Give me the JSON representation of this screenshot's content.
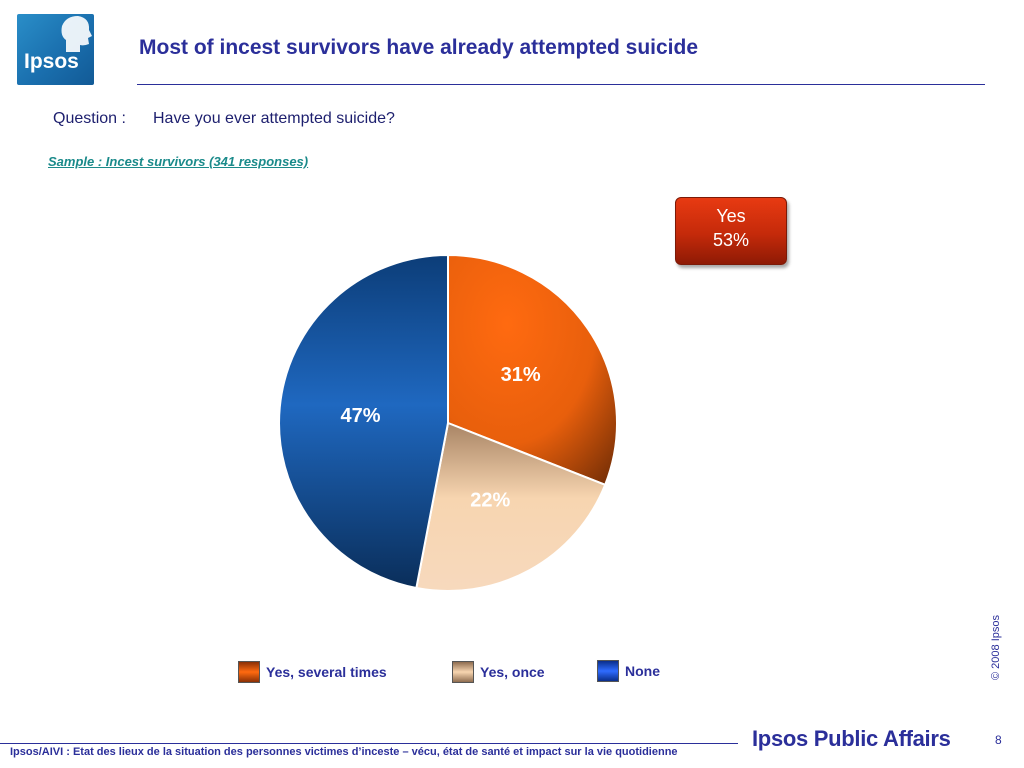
{
  "header": {
    "logo_text": "Ipsos",
    "title": "Most of incest survivors have already attempted suicide"
  },
  "question": {
    "label": "Question :",
    "text": "Have you ever attempted suicide?"
  },
  "sample": "Sample : Incest survivors (341 responses)",
  "callout": {
    "label": "Yes",
    "value": "53%"
  },
  "chart_data": {
    "type": "pie",
    "categories": [
      "Yes, several times",
      "Yes, once",
      "None"
    ],
    "values": [
      31,
      22,
      47
    ],
    "data_labels": [
      "31%",
      "22%",
      "47%"
    ],
    "colors": [
      "#e85f0c",
      "#f0c9a0",
      "#1f5ba6"
    ],
    "legend_position": "bottom"
  },
  "footer": {
    "copyright": "© 2008 Ipsos",
    "text": "Ipsos/AIVI : Etat des lieux de la situation des personnes victimes d’inceste – vécu, état de santé et impact sur la vie quotidienne",
    "brand": "Ipsos Public Affairs",
    "page_number": "8"
  }
}
